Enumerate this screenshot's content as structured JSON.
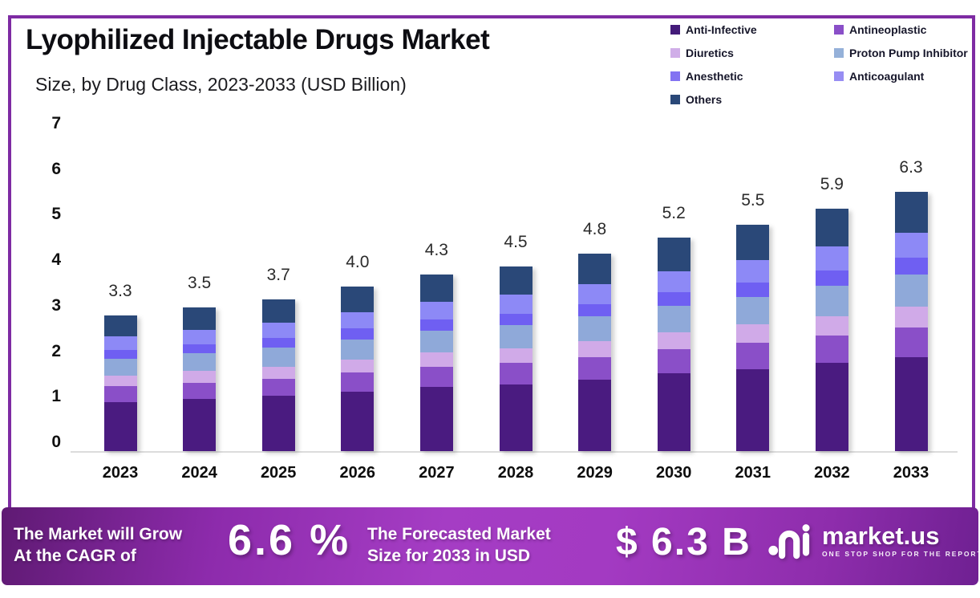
{
  "header": {
    "title": "Lyophilized Injectable Drugs Market",
    "subtitle": "Size, by Drug Class, 2023-2033 (USD Billion)"
  },
  "legend": {
    "columns": [
      [
        {
          "label": "Anti-Infective",
          "color": "#441b7a"
        },
        {
          "label": "Diuretics",
          "color": "#d0aee8"
        },
        {
          "label": "Anesthetic",
          "color": "#8373f2"
        },
        {
          "label": "Others",
          "color": "#2a4878"
        }
      ],
      [
        {
          "label": "Antineoplastic",
          "color": "#8a4fc8"
        },
        {
          "label": "Proton Pump Inhibitor",
          "color": "#95b1d9"
        },
        {
          "label": "Anticoagulant",
          "color": "#978df3"
        }
      ]
    ]
  },
  "chart_data": {
    "type": "bar",
    "stacked": true,
    "title": "Lyophilized Injectable Drugs Market Size, by Drug Class, 2023-2033 (USD Billion)",
    "categories": [
      "2023",
      "2024",
      "2025",
      "2026",
      "2027",
      "2028",
      "2029",
      "2030",
      "2031",
      "2032",
      "2033"
    ],
    "totals": [
      3.3,
      3.5,
      3.7,
      4.0,
      4.3,
      4.5,
      4.8,
      5.2,
      5.5,
      5.9,
      6.3
    ],
    "series": [
      {
        "name": "Anti-Infective",
        "color": "#4a1b80",
        "values": [
          1.2,
          1.27,
          1.34,
          1.45,
          1.56,
          1.63,
          1.74,
          1.89,
          2.0,
          2.14,
          2.29
        ]
      },
      {
        "name": "Antineoplastic",
        "color": "#8a4fc8",
        "values": [
          0.38,
          0.4,
          0.42,
          0.46,
          0.49,
          0.51,
          0.55,
          0.59,
          0.63,
          0.67,
          0.72
        ]
      },
      {
        "name": "Diuretics",
        "color": "#d0aae8",
        "values": [
          0.27,
          0.28,
          0.3,
          0.32,
          0.35,
          0.36,
          0.39,
          0.42,
          0.45,
          0.48,
          0.51
        ]
      },
      {
        "name": "Proton Pump Inhibitor",
        "color": "#8fa9d9",
        "values": [
          0.41,
          0.43,
          0.46,
          0.5,
          0.53,
          0.56,
          0.6,
          0.64,
          0.68,
          0.73,
          0.78
        ]
      },
      {
        "name": "Anesthetic",
        "color": "#6f5ff2",
        "values": [
          0.21,
          0.22,
          0.24,
          0.26,
          0.28,
          0.29,
          0.31,
          0.33,
          0.35,
          0.38,
          0.4
        ]
      },
      {
        "name": "Anticoagulant",
        "color": "#8d89f6",
        "values": [
          0.33,
          0.35,
          0.37,
          0.4,
          0.43,
          0.45,
          0.48,
          0.51,
          0.54,
          0.58,
          0.62
        ]
      },
      {
        "name": "Others",
        "color": "#2a4878",
        "values": [
          0.51,
          0.54,
          0.57,
          0.62,
          0.67,
          0.7,
          0.74,
          0.81,
          0.85,
          0.91,
          0.98
        ]
      }
    ],
    "yticks": [
      7,
      6,
      5,
      4,
      3,
      2,
      1,
      0
    ],
    "ylim": [
      0,
      7
    ],
    "xlabel": "",
    "ylabel": "",
    "grid": false,
    "legend_position": "top-right"
  },
  "footer": {
    "cagr_label_line1": "The Market will Grow",
    "cagr_label_line2": "At the CAGR of",
    "cagr_value": "6.6 %",
    "forecast_label_line1": "The Forecasted Market",
    "forecast_label_line2": "Size for 2033 in USD",
    "forecast_value": "$ 6.3 B",
    "brand_name": "market.us",
    "brand_tagline": "ONE STOP SHOP FOR THE REPORTS"
  },
  "colors": {
    "frame_border": "#7e2ba3",
    "banner_gradient_start": "#5f1a73",
    "banner_gradient_mid": "#a53dc4",
    "banner_gradient_end": "#6f2092",
    "baseline": "#dcdcdc",
    "text_primary": "#0d0d12"
  }
}
